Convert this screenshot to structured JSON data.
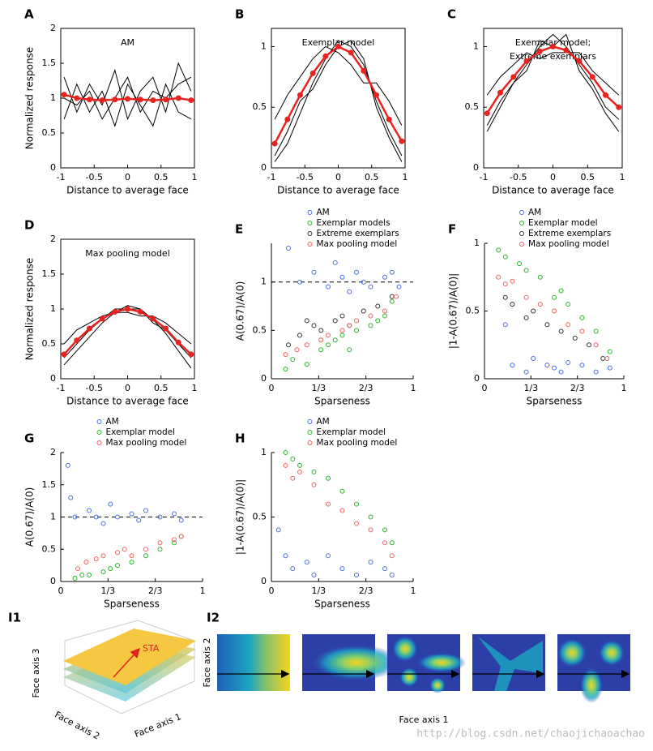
{
  "chart_data": [
    {
      "type": "line",
      "panel": "A",
      "title": "AM",
      "xlabel": "Distance to average face",
      "ylabel": "Normalized response",
      "x": [
        -0.95,
        -0.76,
        -0.57,
        -0.38,
        -0.19,
        0,
        0.19,
        0.38,
        0.57,
        0.76,
        0.95
      ],
      "xlim": [
        -1,
        1
      ],
      "xticks": [
        -1,
        -0.5,
        0,
        0.5,
        1
      ],
      "ylim": [
        0,
        2
      ],
      "yticks": [
        0,
        0.5,
        1,
        1.5,
        2
      ],
      "series": [
        {
          "color": "#000000",
          "values": [
            1.3,
            0.8,
            1.2,
            0.9,
            1.4,
            0.7,
            1.1,
            1.3,
            0.8,
            1.5,
            1.1
          ]
        },
        {
          "color": "#000000",
          "values": [
            0.7,
            1.2,
            0.8,
            1.1,
            0.6,
            1.2,
            0.9,
            0.6,
            1.2,
            0.8,
            0.7
          ]
        },
        {
          "color": "#000000",
          "values": [
            1.0,
            0.9,
            1.1,
            0.7,
            1.0,
            1.3,
            0.8,
            1.1,
            1.0,
            1.2,
            1.3
          ]
        },
        {
          "color": "#e8231f",
          "markers": true,
          "values": [
            1.05,
            1.0,
            0.98,
            0.97,
            0.98,
            0.99,
            0.98,
            0.97,
            0.98,
            1.0,
            0.97
          ]
        }
      ]
    },
    {
      "type": "line",
      "panel": "B",
      "title": "Exemplar model",
      "xlabel": "Distance to average face",
      "x": [
        -0.95,
        -0.76,
        -0.57,
        -0.38,
        -0.19,
        0,
        0.19,
        0.38,
        0.57,
        0.76,
        0.95
      ],
      "xlim": [
        -1,
        1
      ],
      "xticks": [
        -1,
        -0.5,
        0,
        0.5,
        1
      ],
      "ylim": [
        0,
        1.15
      ],
      "yticks": [
        0,
        0.5,
        1
      ],
      "series": [
        {
          "color": "#000000",
          "values": [
            0.05,
            0.2,
            0.45,
            0.7,
            0.9,
            1.05,
            1.0,
            0.85,
            0.55,
            0.3,
            0.1
          ]
        },
        {
          "color": "#000000",
          "values": [
            0.4,
            0.6,
            0.75,
            0.9,
            1.0,
            0.95,
            0.85,
            0.7,
            0.7,
            0.55,
            0.35
          ]
        },
        {
          "color": "#000000",
          "values": [
            0.1,
            0.3,
            0.55,
            0.65,
            0.85,
            1.0,
            1.05,
            0.9,
            0.5,
            0.25,
            0.05
          ]
        },
        {
          "color": "#e8231f",
          "markers": true,
          "values": [
            0.2,
            0.4,
            0.6,
            0.78,
            0.92,
            1.0,
            0.95,
            0.8,
            0.6,
            0.4,
            0.22
          ]
        }
      ]
    },
    {
      "type": "line",
      "panel": "C",
      "title": "Exemplar model;",
      "subtitle": "Extreme exemplars",
      "xlabel": "Distance to average face",
      "x": [
        -0.95,
        -0.76,
        -0.57,
        -0.38,
        -0.19,
        0,
        0.19,
        0.38,
        0.57,
        0.76,
        0.95
      ],
      "xlim": [
        -1,
        1
      ],
      "xticks": [
        -1,
        -0.5,
        0,
        0.5,
        1
      ],
      "ylim": [
        0,
        1.15
      ],
      "yticks": [
        0,
        0.5,
        1
      ],
      "series": [
        {
          "color": "#000000",
          "values": [
            0.3,
            0.5,
            0.7,
            0.85,
            1.0,
            1.1,
            1.0,
            0.85,
            0.7,
            0.5,
            0.4
          ]
        },
        {
          "color": "#000000",
          "values": [
            0.6,
            0.75,
            0.85,
            0.95,
            0.9,
            0.95,
            0.95,
            0.95,
            0.8,
            0.7,
            0.6
          ]
        },
        {
          "color": "#000000",
          "values": [
            0.35,
            0.55,
            0.7,
            0.8,
            1.05,
            1.0,
            1.1,
            0.8,
            0.65,
            0.45,
            0.3
          ]
        },
        {
          "color": "#e8231f",
          "markers": true,
          "values": [
            0.45,
            0.62,
            0.75,
            0.88,
            0.96,
            1.0,
            0.97,
            0.88,
            0.75,
            0.6,
            0.5
          ]
        }
      ]
    },
    {
      "type": "line",
      "panel": "D",
      "title": "Max pooling model",
      "xlabel": "Distance to average face",
      "ylabel": "Normalized response",
      "x": [
        -0.95,
        -0.76,
        -0.57,
        -0.38,
        -0.19,
        0,
        0.19,
        0.38,
        0.57,
        0.76,
        0.95
      ],
      "xlim": [
        -1,
        1
      ],
      "xticks": [
        -1,
        -0.5,
        0,
        0.5,
        1
      ],
      "ylim": [
        0,
        2
      ],
      "yticks": [
        0,
        0.5,
        1,
        1.5,
        2
      ],
      "series": [
        {
          "color": "#000000",
          "values": [
            0.2,
            0.4,
            0.6,
            0.8,
            0.95,
            1.05,
            1.0,
            0.85,
            0.65,
            0.4,
            0.15
          ]
        },
        {
          "color": "#000000",
          "values": [
            0.5,
            0.7,
            0.8,
            0.9,
            0.95,
            0.95,
            0.9,
            0.9,
            0.8,
            0.65,
            0.5
          ]
        },
        {
          "color": "#000000",
          "values": [
            0.3,
            0.5,
            0.7,
            0.85,
            1.0,
            1.0,
            1.0,
            0.8,
            0.7,
            0.5,
            0.3
          ]
        },
        {
          "color": "#e8231f",
          "markers": true,
          "values": [
            0.35,
            0.55,
            0.72,
            0.86,
            0.96,
            1.0,
            0.96,
            0.86,
            0.72,
            0.52,
            0.35
          ]
        }
      ]
    },
    {
      "type": "scatter",
      "panel": "E",
      "xlabel": "Sparseness",
      "ylabel": "A(0.67)/A(0)",
      "xlim": [
        0,
        1
      ],
      "xticks": [
        0,
        {
          "value": 0.3333,
          "label": "1/3"
        },
        {
          "value": 0.6667,
          "label": "2/3"
        },
        1
      ],
      "ylim": [
        0,
        1.4
      ],
      "yticks": [
        0,
        0.5,
        1
      ],
      "reference_line": 1,
      "series": [
        {
          "name": "AM",
          "color": "#4a6fe3",
          "x": [
            0.12,
            0.2,
            0.3,
            0.4,
            0.45,
            0.5,
            0.55,
            0.6,
            0.65,
            0.7,
            0.8,
            0.85,
            0.9
          ],
          "values": [
            1.35,
            1.0,
            1.1,
            0.95,
            1.2,
            1.05,
            0.9,
            1.1,
            1.0,
            0.95,
            1.05,
            1.1,
            0.95
          ]
        },
        {
          "name": "Exemplar models",
          "color": "#2ab52a",
          "x": [
            0.1,
            0.15,
            0.25,
            0.35,
            0.4,
            0.45,
            0.5,
            0.55,
            0.6,
            0.7,
            0.75,
            0.8,
            0.85
          ],
          "values": [
            0.1,
            0.2,
            0.15,
            0.3,
            0.35,
            0.4,
            0.45,
            0.3,
            0.5,
            0.55,
            0.6,
            0.65,
            0.8
          ]
        },
        {
          "name": "Extreme exemplars",
          "color": "#333333",
          "x": [
            0.12,
            0.2,
            0.25,
            0.3,
            0.35,
            0.45,
            0.5,
            0.55,
            0.65,
            0.75,
            0.85
          ],
          "values": [
            0.35,
            0.45,
            0.6,
            0.55,
            0.5,
            0.6,
            0.65,
            0.55,
            0.7,
            0.75,
            0.85
          ]
        },
        {
          "name": "Max pooling model",
          "color": "#f0605f",
          "x": [
            0.1,
            0.18,
            0.25,
            0.35,
            0.4,
            0.5,
            0.55,
            0.6,
            0.7,
            0.8,
            0.88
          ],
          "values": [
            0.25,
            0.3,
            0.35,
            0.4,
            0.45,
            0.5,
            0.55,
            0.6,
            0.65,
            0.7,
            0.85
          ]
        }
      ]
    },
    {
      "type": "scatter",
      "panel": "F",
      "xlabel": "Sparseness",
      "ylabel": "|1-A(0.67)/A(0)|",
      "xlim": [
        0,
        1
      ],
      "xticks": [
        0,
        {
          "value": 0.3333,
          "label": "1/3"
        },
        {
          "value": 0.6667,
          "label": "2/3"
        },
        1
      ],
      "ylim": [
        0,
        1
      ],
      "yticks": [
        0,
        0.5,
        1
      ],
      "series": [
        {
          "name": "AM",
          "color": "#4a6fe3",
          "x": [
            0.15,
            0.2,
            0.3,
            0.35,
            0.45,
            0.5,
            0.55,
            0.6,
            0.7,
            0.8,
            0.9
          ],
          "values": [
            0.4,
            0.1,
            0.05,
            0.15,
            0.1,
            0.08,
            0.05,
            0.12,
            0.1,
            0.05,
            0.08
          ]
        },
        {
          "name": "Exemplar model",
          "color": "#2ab52a",
          "x": [
            0.1,
            0.15,
            0.25,
            0.3,
            0.4,
            0.5,
            0.55,
            0.6,
            0.7,
            0.8,
            0.9
          ],
          "values": [
            0.95,
            0.9,
            0.85,
            0.8,
            0.75,
            0.6,
            0.65,
            0.55,
            0.45,
            0.35,
            0.2
          ]
        },
        {
          "name": "Extreme exemplars",
          "color": "#333333",
          "x": [
            0.15,
            0.2,
            0.3,
            0.35,
            0.45,
            0.55,
            0.65,
            0.75,
            0.85
          ],
          "values": [
            0.6,
            0.55,
            0.45,
            0.5,
            0.4,
            0.35,
            0.3,
            0.25,
            0.15
          ]
        },
        {
          "name": "Max pooling model",
          "color": "#f0605f",
          "x": [
            0.1,
            0.15,
            0.2,
            0.3,
            0.4,
            0.5,
            0.6,
            0.7,
            0.8,
            0.88
          ],
          "values": [
            0.75,
            0.7,
            0.72,
            0.6,
            0.55,
            0.5,
            0.4,
            0.35,
            0.25,
            0.15
          ]
        }
      ]
    },
    {
      "type": "scatter",
      "panel": "G",
      "xlabel": "Sparseness",
      "ylabel": "A(0.67)/A(0)",
      "xlim": [
        0,
        1
      ],
      "xticks": [
        0,
        {
          "value": 0.3333,
          "label": "1/3"
        },
        {
          "value": 0.6667,
          "label": "2/3"
        },
        1
      ],
      "ylim": [
        0,
        2
      ],
      "yticks": [
        0,
        0.5,
        1,
        1.5,
        2
      ],
      "reference_line": 1,
      "series": [
        {
          "name": "AM",
          "color": "#4a6fe3",
          "x": [
            0.05,
            0.07,
            0.1,
            0.2,
            0.25,
            0.3,
            0.35,
            0.4,
            0.5,
            0.55,
            0.6,
            0.7,
            0.8,
            0.85
          ],
          "values": [
            1.8,
            1.3,
            1.0,
            1.1,
            1.0,
            0.9,
            1.2,
            1.0,
            1.05,
            0.95,
            1.1,
            1.0,
            1.05,
            0.95
          ]
        },
        {
          "name": "Exemplar model",
          "color": "#2ab52a",
          "x": [
            0.1,
            0.15,
            0.2,
            0.3,
            0.35,
            0.4,
            0.5,
            0.6,
            0.7,
            0.8,
            0.85
          ],
          "values": [
            0.05,
            0.1,
            0.1,
            0.15,
            0.2,
            0.25,
            0.3,
            0.4,
            0.5,
            0.6,
            0.7
          ]
        },
        {
          "name": "Max pooling model",
          "color": "#f0605f",
          "x": [
            0.12,
            0.18,
            0.25,
            0.3,
            0.4,
            0.45,
            0.5,
            0.6,
            0.7,
            0.8,
            0.85
          ],
          "values": [
            0.2,
            0.3,
            0.35,
            0.4,
            0.45,
            0.5,
            0.4,
            0.5,
            0.6,
            0.65,
            0.7
          ]
        }
      ]
    },
    {
      "type": "scatter",
      "panel": "H",
      "xlabel": "Sparseness",
      "ylabel": "|1-A(0.67)/A(0)|",
      "xlim": [
        0,
        1
      ],
      "xticks": [
        0,
        {
          "value": 0.3333,
          "label": "1/3"
        },
        {
          "value": 0.6667,
          "label": "2/3"
        },
        1
      ],
      "ylim": [
        0,
        1
      ],
      "yticks": [
        0,
        0.5,
        1
      ],
      "series": [
        {
          "name": "AM",
          "color": "#4a6fe3",
          "x": [
            0.05,
            0.1,
            0.15,
            0.25,
            0.3,
            0.4,
            0.5,
            0.6,
            0.7,
            0.8,
            0.85
          ],
          "values": [
            0.4,
            0.2,
            0.1,
            0.15,
            0.05,
            0.2,
            0.1,
            0.05,
            0.15,
            0.1,
            0.05
          ]
        },
        {
          "name": "Exemplar model",
          "color": "#2ab52a",
          "x": [
            0.1,
            0.15,
            0.2,
            0.3,
            0.4,
            0.5,
            0.6,
            0.7,
            0.8,
            0.85
          ],
          "values": [
            1.0,
            0.95,
            0.9,
            0.85,
            0.8,
            0.7,
            0.6,
            0.5,
            0.4,
            0.3
          ]
        },
        {
          "name": "Max pooling model",
          "color": "#f0605f",
          "x": [
            0.1,
            0.15,
            0.2,
            0.3,
            0.4,
            0.5,
            0.6,
            0.7,
            0.8,
            0.85
          ],
          "values": [
            0.9,
            0.8,
            0.85,
            0.75,
            0.6,
            0.55,
            0.45,
            0.4,
            0.3,
            0.2
          ]
        }
      ]
    }
  ],
  "panel_i1": {
    "panel": "I1",
    "sta": "STA",
    "axis3": "Face axis 3",
    "axis2": "Face axis 2",
    "axis1": "Face axis 1"
  },
  "panel_i2": {
    "panel": "I2",
    "ylabel": "Face axis 2",
    "xlabel": "Face axis 1"
  },
  "watermark": "http://blog.csdn.net/chaojichaoachao"
}
